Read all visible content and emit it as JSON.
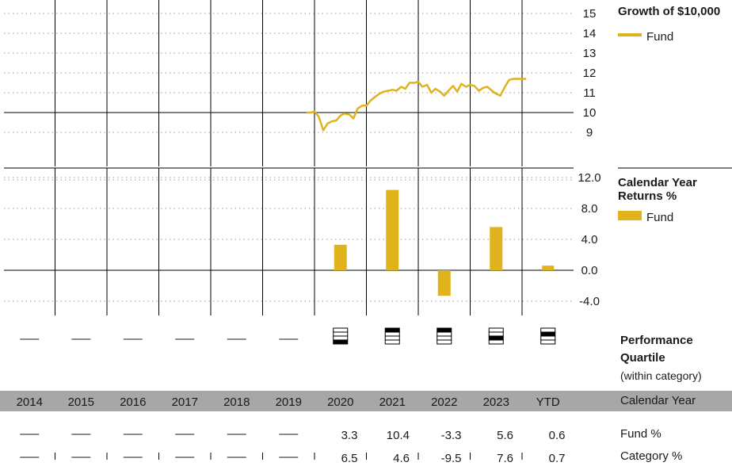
{
  "colors": {
    "fund": "#e0b31c",
    "band": "#a7a7a7",
    "line": "#000000",
    "grid": "#999999"
  },
  "years": [
    "2014",
    "2015",
    "2016",
    "2017",
    "2018",
    "2019",
    "2020",
    "2021",
    "2022",
    "2023",
    "YTD"
  ],
  "growth_panel": {
    "title": "Growth of $10,000",
    "legend": "Fund",
    "y_ticks": [
      "15",
      "14",
      "13",
      "12",
      "11",
      "10",
      "9"
    ]
  },
  "returns_panel": {
    "title": "Calendar Year Returns %",
    "legend": "Fund",
    "y_ticks": [
      "12.0",
      "8.0",
      "4.0",
      "0.0",
      "-4.0"
    ]
  },
  "quartile_panel": {
    "title": "Performance Quartile",
    "subtitle": "(within category)",
    "quartiles": [
      null,
      null,
      null,
      null,
      null,
      null,
      4,
      1,
      1,
      3,
      2
    ]
  },
  "table": {
    "band_label": "Calendar Year",
    "rows": [
      {
        "label": "Fund %",
        "values": [
          "—",
          "—",
          "—",
          "—",
          "—",
          "—",
          "3.3",
          "10.4",
          "-3.3",
          "5.6",
          "0.6"
        ]
      },
      {
        "label": "Category %",
        "values": [
          "—",
          "—",
          "—",
          "—",
          "—",
          "—",
          "6.5",
          "4.6",
          "-9.5",
          "7.6",
          "0.7"
        ]
      }
    ]
  },
  "chart_data": [
    {
      "type": "line",
      "title": "Growth of $10,000",
      "series": [
        {
          "name": "Fund",
          "x": [
            2019.85,
            2019.93,
            2020.0,
            2020.08,
            2020.17,
            2020.25,
            2020.33,
            2020.42,
            2020.5,
            2020.58,
            2020.67,
            2020.75,
            2020.83,
            2020.92,
            2021.0,
            2021.08,
            2021.17,
            2021.25,
            2021.33,
            2021.42,
            2021.5,
            2021.58,
            2021.67,
            2021.75,
            2021.83,
            2021.92,
            2022.0,
            2022.08,
            2022.17,
            2022.25,
            2022.33,
            2022.42,
            2022.5,
            2022.58,
            2022.67,
            2022.75,
            2022.83,
            2022.92,
            2023.0,
            2023.08,
            2023.17,
            2023.25,
            2023.33,
            2023.42,
            2023.5,
            2023.58,
            2023.67,
            2023.75,
            2023.83,
            2023.92,
            2024.0,
            2024.08
          ],
          "values": [
            10.0,
            10.0,
            10.05,
            9.8,
            9.1,
            9.45,
            9.55,
            9.6,
            9.85,
            9.95,
            9.9,
            9.7,
            10.2,
            10.35,
            10.35,
            10.6,
            10.8,
            10.95,
            11.05,
            11.1,
            11.15,
            11.1,
            11.3,
            11.2,
            11.5,
            11.5,
            11.55,
            11.3,
            11.4,
            11.0,
            11.2,
            11.05,
            10.85,
            11.1,
            11.35,
            11.05,
            11.45,
            11.3,
            11.4,
            11.35,
            11.1,
            11.25,
            11.3,
            11.1,
            10.95,
            10.85,
            11.3,
            11.65,
            11.7,
            11.7,
            11.7,
            11.7
          ]
        }
      ],
      "ylim": [
        9,
        15
      ],
      "gridlines": true,
      "legend_position": "top-right"
    },
    {
      "type": "bar",
      "title": "Calendar Year Returns %",
      "categories": [
        "2014",
        "2015",
        "2016",
        "2017",
        "2018",
        "2019",
        "2020",
        "2021",
        "2022",
        "2023",
        "YTD"
      ],
      "series": [
        {
          "name": "Fund",
          "values": [
            null,
            null,
            null,
            null,
            null,
            null,
            3.3,
            10.4,
            -3.3,
            5.6,
            0.6
          ]
        }
      ],
      "ylim": [
        -4,
        12
      ],
      "gridlines": true,
      "legend_position": "top-right"
    }
  ]
}
